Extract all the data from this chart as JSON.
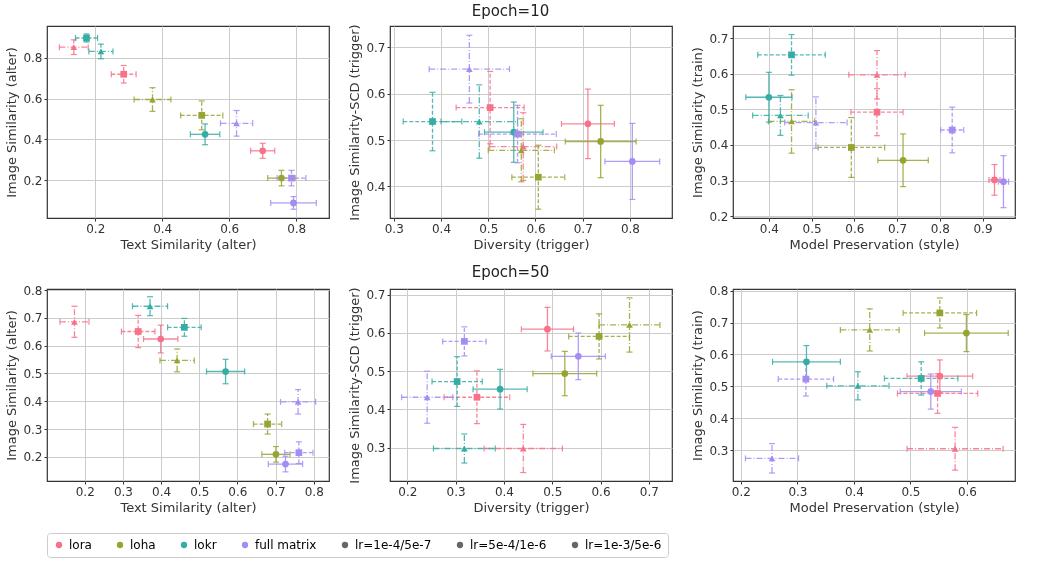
{
  "chart_data": [
    {
      "type": "scatter",
      "xlabel": "Text Similarity (alter)",
      "ylabel": "Image Similarity (alter)",
      "xlim": [
        0.056,
        0.898
      ],
      "ylim": [
        0.014,
        0.957
      ],
      "xticks": [
        0.2,
        0.4,
        0.6,
        0.8
      ],
      "yticks": [
        0.2,
        0.4,
        0.6,
        0.8
      ],
      "grid": true,
      "legend": "bottom",
      "series": [
        {
          "name": "lora",
          "color": "#f77189",
          "marker": "circle",
          "line_style": "solid",
          "x": [
            0.7
          ],
          "values": [
            0.344
          ],
          "xerrors": [
            0.036
          ],
          "errors": [
            0.037
          ]
        },
        {
          "color": "#f77189",
          "marker": "square",
          "line_style": "dashed",
          "x": [
            0.285
          ],
          "values": [
            0.72
          ],
          "xerrors": [
            0.037
          ],
          "errors": [
            0.043
          ]
        },
        {
          "color": "#f77189",
          "marker": "triangle",
          "line_style": "dashdot",
          "x": [
            0.136
          ],
          "values": [
            0.853
          ],
          "xerrors": [
            0.043
          ],
          "errors": [
            0.036
          ]
        },
        {
          "name": "loha",
          "color": "#97a431",
          "marker": "circle",
          "line_style": "solid",
          "x": [
            0.756
          ],
          "values": [
            0.21
          ],
          "xerrors": [
            0.041
          ],
          "errors": [
            0.038
          ]
        },
        {
          "color": "#97a431",
          "marker": "square",
          "line_style": "dashed",
          "x": [
            0.518
          ],
          "values": [
            0.518
          ],
          "xerrors": [
            0.063
          ],
          "errors": [
            0.071
          ]
        },
        {
          "color": "#97a431",
          "marker": "triangle",
          "line_style": "dashdot",
          "x": [
            0.371
          ],
          "values": [
            0.596
          ],
          "xerrors": [
            0.055
          ],
          "errors": [
            0.058
          ]
        },
        {
          "name": "lokr",
          "color": "#36ada4",
          "marker": "circle",
          "line_style": "solid",
          "x": [
            0.528
          ],
          "values": [
            0.425
          ],
          "xerrors": [
            0.044
          ],
          "errors": [
            0.051
          ]
        },
        {
          "color": "#36ada4",
          "marker": "square",
          "line_style": "dashed",
          "x": [
            0.174
          ],
          "values": [
            0.898
          ],
          "xerrors": [
            0.033
          ],
          "errors": [
            0.02
          ]
        },
        {
          "color": "#36ada4",
          "marker": "triangle",
          "line_style": "dashdot",
          "x": [
            0.217
          ],
          "values": [
            0.832
          ],
          "xerrors": [
            0.036
          ],
          "errors": [
            0.036
          ]
        },
        {
          "name": "full matrix",
          "color": "#a48cf4",
          "marker": "circle",
          "line_style": "solid",
          "x": [
            0.792
          ],
          "values": [
            0.088
          ],
          "xerrors": [
            0.068
          ],
          "errors": [
            0.031
          ]
        },
        {
          "color": "#a48cf4",
          "marker": "square",
          "line_style": "dashed",
          "x": [
            0.786
          ],
          "values": [
            0.21
          ],
          "xerrors": [
            0.043
          ],
          "errors": [
            0.038
          ]
        },
        {
          "color": "#a48cf4",
          "marker": "triangle",
          "line_style": "dashdot",
          "x": [
            0.622
          ],
          "values": [
            0.479
          ],
          "xerrors": [
            0.048
          ],
          "errors": [
            0.063
          ]
        },
        {
          "name": "lr=1e-4/5e-7",
          "color": "#666666",
          "marker": "circle"
        },
        {
          "name": "lr=5e-4/1e-6",
          "color": "#666666",
          "marker": "square"
        },
        {
          "name": "lr=1e-3/5e-6",
          "color": "#666666",
          "marker": "triangle"
        }
      ]
    },
    {
      "type": "scatter",
      "title": "Epoch=10",
      "xlabel": "Diversity (trigger)",
      "ylabel": "Image Similarity-SCD (trigger)",
      "xlim": [
        0.292,
        0.889
      ],
      "ylim": [
        0.332,
        0.746
      ],
      "xticks": [
        0.3,
        0.4,
        0.5,
        0.6,
        0.7,
        0.8
      ],
      "yticks": [
        0.4,
        0.5,
        0.6,
        0.7
      ],
      "grid": true,
      "series": [
        {
          "name": "lora",
          "color": "#f77189",
          "marker": "circle",
          "line_style": "solid",
          "x": [
            0.711
          ],
          "values": [
            0.535
          ],
          "xerrors": [
            0.056
          ],
          "errors": [
            0.075
          ]
        },
        {
          "color": "#f77189",
          "marker": "square",
          "line_style": "dashed",
          "x": [
            0.504
          ],
          "values": [
            0.57
          ],
          "xerrors": [
            0.072
          ],
          "errors": [
            0.078
          ]
        },
        {
          "color": "#f77189",
          "marker": "triangle",
          "line_style": "dashdot",
          "x": [
            0.574
          ],
          "values": [
            0.486
          ],
          "xerrors": [
            0.071
          ],
          "errors": [
            0.073
          ]
        },
        {
          "name": "loha",
          "color": "#97a431",
          "marker": "circle",
          "line_style": "solid",
          "x": [
            0.738
          ],
          "values": [
            0.497
          ],
          "xerrors": [
            0.075
          ],
          "errors": [
            0.078
          ]
        },
        {
          "color": "#97a431",
          "marker": "square",
          "line_style": "dashed",
          "x": [
            0.606
          ],
          "values": [
            0.42
          ],
          "xerrors": [
            0.056
          ],
          "errors": [
            0.069
          ]
        },
        {
          "color": "#97a431",
          "marker": "triangle",
          "line_style": "dashdot",
          "x": [
            0.57
          ],
          "values": [
            0.478
          ],
          "xerrors": [
            0.07
          ],
          "errors": [
            0.068
          ]
        },
        {
          "name": "lokr",
          "color": "#36ada4",
          "marker": "circle",
          "line_style": "solid",
          "x": [
            0.554
          ],
          "values": [
            0.517
          ],
          "xerrors": [
            0.062
          ],
          "errors": [
            0.065
          ]
        },
        {
          "color": "#36ada4",
          "marker": "square",
          "line_style": "dashed",
          "x": [
            0.382
          ],
          "values": [
            0.54
          ],
          "xerrors": [
            0.062
          ],
          "errors": [
            0.063
          ]
        },
        {
          "color": "#36ada4",
          "marker": "triangle",
          "line_style": "dashdot",
          "x": [
            0.481
          ],
          "values": [
            0.54
          ],
          "xerrors": [
            0.081
          ],
          "errors": [
            0.079
          ]
        },
        {
          "name": "full matrix",
          "color": "#a48cf4",
          "marker": "circle",
          "line_style": "solid",
          "x": [
            0.805
          ],
          "values": [
            0.454
          ],
          "xerrors": [
            0.058
          ],
          "errors": [
            0.082
          ]
        },
        {
          "color": "#a48cf4",
          "marker": "square",
          "line_style": "dashed",
          "x": [
            0.562
          ],
          "values": [
            0.513
          ],
          "xerrors": [
            0.082
          ],
          "errors": [
            0.062
          ]
        },
        {
          "color": "#a48cf4",
          "marker": "triangle",
          "line_style": "dashdot",
          "x": [
            0.46
          ],
          "values": [
            0.653
          ],
          "xerrors": [
            0.085
          ],
          "errors": [
            0.073
          ]
        }
      ]
    },
    {
      "type": "scatter",
      "xlabel": "Model Preservation (style)",
      "ylabel": "Image Similarity (train)",
      "xlim": [
        0.316,
        0.976
      ],
      "ylim": [
        0.195,
        0.734
      ],
      "xticks": [
        0.4,
        0.5,
        0.6,
        0.7,
        0.8,
        0.9
      ],
      "yticks": [
        0.2,
        0.3,
        0.4,
        0.5,
        0.6,
        0.7
      ],
      "grid": true,
      "series": [
        {
          "name": "lora",
          "color": "#f77189",
          "marker": "circle",
          "line_style": "solid",
          "x": [
            0.928
          ],
          "values": [
            0.302
          ],
          "xerrors": [
            0.013
          ],
          "errors": [
            0.043
          ]
        },
        {
          "color": "#f77189",
          "marker": "square",
          "line_style": "dashed",
          "x": [
            0.653
          ],
          "values": [
            0.492
          ],
          "xerrors": [
            0.061
          ],
          "errors": [
            0.066
          ]
        },
        {
          "color": "#f77189",
          "marker": "triangle",
          "line_style": "dashdot",
          "x": [
            0.653
          ],
          "values": [
            0.597
          ],
          "xerrors": [
            0.066
          ],
          "errors": [
            0.068
          ]
        },
        {
          "name": "loha",
          "color": "#97a431",
          "marker": "circle",
          "line_style": "solid",
          "x": [
            0.714
          ],
          "values": [
            0.357
          ],
          "xerrors": [
            0.059
          ],
          "errors": [
            0.074
          ]
        },
        {
          "color": "#97a431",
          "marker": "square",
          "line_style": "dashed",
          "x": [
            0.593
          ],
          "values": [
            0.393
          ],
          "xerrors": [
            0.078
          ],
          "errors": [
            0.084
          ]
        },
        {
          "color": "#97a431",
          "marker": "triangle",
          "line_style": "dashdot",
          "x": [
            0.453
          ],
          "values": [
            0.466
          ],
          "xerrors": [
            0.054
          ],
          "errors": [
            0.089
          ]
        },
        {
          "name": "lokr",
          "color": "#36ada4",
          "marker": "circle",
          "line_style": "solid",
          "x": [
            0.4
          ],
          "values": [
            0.534
          ],
          "xerrors": [
            0.054
          ],
          "errors": [
            0.07
          ]
        },
        {
          "color": "#36ada4",
          "marker": "square",
          "line_style": "dashed",
          "x": [
            0.453
          ],
          "values": [
            0.653
          ],
          "xerrors": [
            0.079
          ],
          "errors": [
            0.057
          ]
        },
        {
          "color": "#36ada4",
          "marker": "triangle",
          "line_style": "dashdot",
          "x": [
            0.427
          ],
          "values": [
            0.483
          ],
          "xerrors": [
            0.065
          ],
          "errors": [
            0.056
          ]
        },
        {
          "name": "full matrix",
          "color": "#a48cf4",
          "marker": "circle",
          "line_style": "solid",
          "x": [
            0.949
          ],
          "values": [
            0.297
          ],
          "xerrors": [
            0.012
          ],
          "errors": [
            0.073
          ]
        },
        {
          "color": "#a48cf4",
          "marker": "square",
          "line_style": "dashed",
          "x": [
            0.829
          ],
          "values": [
            0.442
          ],
          "xerrors": [
            0.027
          ],
          "errors": [
            0.064
          ]
        },
        {
          "color": "#a48cf4",
          "marker": "triangle",
          "line_style": "dashdot",
          "x": [
            0.51
          ],
          "values": [
            0.463
          ],
          "xerrors": [
            0.073
          ],
          "errors": [
            0.072
          ]
        }
      ]
    },
    {
      "type": "scatter",
      "xlabel": "Text Similarity (alter)",
      "ylabel": "Image Similarity (alter)",
      "xlim": [
        0.101,
        0.84
      ],
      "ylim": [
        0.113,
        0.804
      ],
      "xticks": [
        0.2,
        0.3,
        0.4,
        0.5,
        0.6,
        0.7,
        0.8
      ],
      "yticks": [
        0.2,
        0.3,
        0.4,
        0.5,
        0.6,
        0.7,
        0.8
      ],
      "grid": true,
      "series": [
        {
          "name": "lora",
          "color": "#f77189",
          "marker": "circle",
          "line_style": "solid",
          "x": [
            0.399
          ],
          "values": [
            0.624
          ],
          "xerrors": [
            0.045
          ],
          "errors": [
            0.05
          ]
        },
        {
          "color": "#f77189",
          "marker": "square",
          "line_style": "dashed",
          "x": [
            0.34
          ],
          "values": [
            0.651
          ],
          "xerrors": [
            0.044
          ],
          "errors": [
            0.058
          ]
        },
        {
          "color": "#f77189",
          "marker": "triangle",
          "line_style": "dashdot",
          "x": [
            0.173
          ],
          "values": [
            0.686
          ],
          "xerrors": [
            0.038
          ],
          "errors": [
            0.056
          ]
        },
        {
          "name": "loha",
          "color": "#97a431",
          "marker": "circle",
          "line_style": "solid",
          "x": [
            0.701
          ],
          "values": [
            0.209
          ],
          "xerrors": [
            0.037
          ],
          "errors": [
            0.028
          ]
        },
        {
          "color": "#97a431",
          "marker": "square",
          "line_style": "dashed",
          "x": [
            0.679
          ],
          "values": [
            0.318
          ],
          "xerrors": [
            0.037
          ],
          "errors": [
            0.036
          ]
        },
        {
          "color": "#97a431",
          "marker": "triangle",
          "line_style": "dashdot",
          "x": [
            0.442
          ],
          "values": [
            0.547
          ],
          "xerrors": [
            0.045
          ],
          "errors": [
            0.041
          ]
        },
        {
          "name": "lokr",
          "color": "#36ada4",
          "marker": "circle",
          "line_style": "solid",
          "x": [
            0.569
          ],
          "values": [
            0.507
          ],
          "xerrors": [
            0.05
          ],
          "errors": [
            0.044
          ]
        },
        {
          "color": "#36ada4",
          "marker": "square",
          "line_style": "dashed",
          "x": [
            0.461
          ],
          "values": [
            0.666
          ],
          "xerrors": [
            0.044
          ],
          "errors": [
            0.032
          ]
        },
        {
          "color": "#36ada4",
          "marker": "triangle",
          "line_style": "dashdot",
          "x": [
            0.371
          ],
          "values": [
            0.742
          ],
          "xerrors": [
            0.046
          ],
          "errors": [
            0.034
          ]
        },
        {
          "name": "full matrix",
          "color": "#a48cf4",
          "marker": "circle",
          "line_style": "solid",
          "x": [
            0.726
          ],
          "values": [
            0.174
          ],
          "xerrors": [
            0.045
          ],
          "errors": [
            0.028
          ]
        },
        {
          "color": "#a48cf4",
          "marker": "square",
          "line_style": "dashed",
          "x": [
            0.761
          ],
          "values": [
            0.215
          ],
          "xerrors": [
            0.037
          ],
          "errors": [
            0.039
          ]
        },
        {
          "color": "#a48cf4",
          "marker": "triangle",
          "line_style": "dashdot",
          "x": [
            0.759
          ],
          "values": [
            0.398
          ],
          "xerrors": [
            0.046
          ],
          "errors": [
            0.044
          ]
        }
      ]
    },
    {
      "type": "scatter",
      "title": "Epoch=50",
      "xlabel": "Diversity (trigger)",
      "ylabel": "Image Similarity-SCD (trigger)",
      "xlim": [
        0.164,
        0.748
      ],
      "ylim": [
        0.213,
        0.715
      ],
      "xticks": [
        0.2,
        0.3,
        0.4,
        0.5,
        0.6,
        0.7
      ],
      "yticks": [
        0.3,
        0.4,
        0.5,
        0.6,
        0.7
      ],
      "grid": true,
      "series": [
        {
          "name": "lora",
          "color": "#f77189",
          "marker": "circle",
          "line_style": "solid",
          "x": [
            0.49
          ],
          "values": [
            0.61
          ],
          "xerrors": [
            0.054
          ],
          "errors": [
            0.057
          ]
        },
        {
          "color": "#f77189",
          "marker": "square",
          "line_style": "dashed",
          "x": [
            0.344
          ],
          "values": [
            0.432
          ],
          "xerrors": [
            0.068
          ],
          "errors": [
            0.069
          ]
        },
        {
          "color": "#f77189",
          "marker": "triangle",
          "line_style": "dashdot",
          "x": [
            0.44
          ],
          "values": [
            0.298
          ],
          "xerrors": [
            0.081
          ],
          "errors": [
            0.063
          ]
        },
        {
          "name": "loha",
          "color": "#97a431",
          "marker": "circle",
          "line_style": "solid",
          "x": [
            0.526
          ],
          "values": [
            0.494
          ],
          "xerrors": [
            0.066
          ],
          "errors": [
            0.058
          ]
        },
        {
          "color": "#97a431",
          "marker": "square",
          "line_style": "dashed",
          "x": [
            0.597
          ],
          "values": [
            0.591
          ],
          "xerrors": [
            0.063
          ],
          "errors": [
            0.059
          ]
        },
        {
          "color": "#97a431",
          "marker": "triangle",
          "line_style": "dashdot",
          "x": [
            0.66
          ],
          "values": [
            0.621
          ],
          "xerrors": [
            0.063
          ],
          "errors": [
            0.071
          ]
        },
        {
          "name": "lokr",
          "color": "#36ada4",
          "marker": "circle",
          "line_style": "solid",
          "x": [
            0.392
          ],
          "values": [
            0.453
          ],
          "xerrors": [
            0.056
          ],
          "errors": [
            0.052
          ]
        },
        {
          "color": "#36ada4",
          "marker": "square",
          "line_style": "dashed",
          "x": [
            0.303
          ],
          "values": [
            0.473
          ],
          "xerrors": [
            0.052
          ],
          "errors": [
            0.065
          ]
        },
        {
          "color": "#36ada4",
          "marker": "triangle",
          "line_style": "dashdot",
          "x": [
            0.318
          ],
          "values": [
            0.298
          ],
          "xerrors": [
            0.064
          ],
          "errors": [
            0.038
          ]
        },
        {
          "name": "full matrix",
          "color": "#a48cf4",
          "marker": "circle",
          "line_style": "solid",
          "x": [
            0.554
          ],
          "values": [
            0.539
          ],
          "xerrors": [
            0.056
          ],
          "errors": [
            0.061
          ]
        },
        {
          "color": "#a48cf4",
          "marker": "square",
          "line_style": "dashed",
          "x": [
            0.318
          ],
          "values": [
            0.578
          ],
          "xerrors": [
            0.045
          ],
          "errors": [
            0.038
          ]
        },
        {
          "color": "#a48cf4",
          "marker": "triangle",
          "line_style": "dashdot",
          "x": [
            0.241
          ],
          "values": [
            0.432
          ],
          "xerrors": [
            0.053
          ],
          "errors": [
            0.068
          ]
        }
      ]
    },
    {
      "type": "scatter",
      "xlabel": "Model Preservation (style)",
      "ylabel": "Image Similarity (train)",
      "xlim": [
        0.186,
        0.685
      ],
      "ylim": [
        0.204,
        0.805
      ],
      "xticks": [
        0.2,
        0.3,
        0.4,
        0.5,
        0.6
      ],
      "yticks": [
        0.3,
        0.4,
        0.5,
        0.6,
        0.7,
        0.8
      ],
      "grid": true,
      "series": [
        {
          "name": "lora",
          "color": "#f77189",
          "marker": "circle",
          "line_style": "solid",
          "x": [
            0.552
          ],
          "values": [
            0.532
          ],
          "xerrors": [
            0.058
          ],
          "errors": [
            0.051
          ]
        },
        {
          "color": "#f77189",
          "marker": "square",
          "line_style": "dashed",
          "x": [
            0.548
          ],
          "values": [
            0.478
          ],
          "xerrors": [
            0.071
          ],
          "errors": [
            0.062
          ]
        },
        {
          "color": "#f77189",
          "marker": "triangle",
          "line_style": "dashdot",
          "x": [
            0.579
          ],
          "values": [
            0.305
          ],
          "xerrors": [
            0.085
          ],
          "errors": [
            0.067
          ]
        },
        {
          "name": "loha",
          "color": "#97a431",
          "marker": "circle",
          "line_style": "solid",
          "x": [
            0.599
          ],
          "values": [
            0.667
          ],
          "xerrors": [
            0.074
          ],
          "errors": [
            0.058
          ]
        },
        {
          "color": "#97a431",
          "marker": "square",
          "line_style": "dashed",
          "x": [
            0.552
          ],
          "values": [
            0.73
          ],
          "xerrors": [
            0.065
          ],
          "errors": [
            0.047
          ]
        },
        {
          "color": "#97a431",
          "marker": "triangle",
          "line_style": "dashdot",
          "x": [
            0.428
          ],
          "values": [
            0.677
          ],
          "xerrors": [
            0.052
          ],
          "errors": [
            0.066
          ]
        },
        {
          "name": "lokr",
          "color": "#36ada4",
          "marker": "circle",
          "line_style": "solid",
          "x": [
            0.316
          ],
          "values": [
            0.577
          ],
          "xerrors": [
            0.06
          ],
          "errors": [
            0.051
          ]
        },
        {
          "color": "#36ada4",
          "marker": "square",
          "line_style": "dashed",
          "x": [
            0.519
          ],
          "values": [
            0.525
          ],
          "xerrors": [
            0.065
          ],
          "errors": [
            0.052
          ]
        },
        {
          "color": "#36ada4",
          "marker": "triangle",
          "line_style": "dashdot",
          "x": [
            0.407
          ],
          "values": [
            0.502
          ],
          "xerrors": [
            0.055
          ],
          "errors": [
            0.044
          ]
        },
        {
          "name": "full matrix",
          "color": "#a48cf4",
          "marker": "circle",
          "line_style": "solid",
          "x": [
            0.536
          ],
          "values": [
            0.484
          ],
          "xerrors": [
            0.054
          ],
          "errors": [
            0.055
          ]
        },
        {
          "color": "#a48cf4",
          "marker": "square",
          "line_style": "dashed",
          "x": [
            0.315
          ],
          "values": [
            0.523
          ],
          "xerrors": [
            0.049
          ],
          "errors": [
            0.053
          ]
        },
        {
          "color": "#a48cf4",
          "marker": "triangle",
          "line_style": "dashdot",
          "x": [
            0.255
          ],
          "values": [
            0.275
          ],
          "xerrors": [
            0.047
          ],
          "errors": [
            0.046
          ]
        }
      ]
    }
  ]
}
